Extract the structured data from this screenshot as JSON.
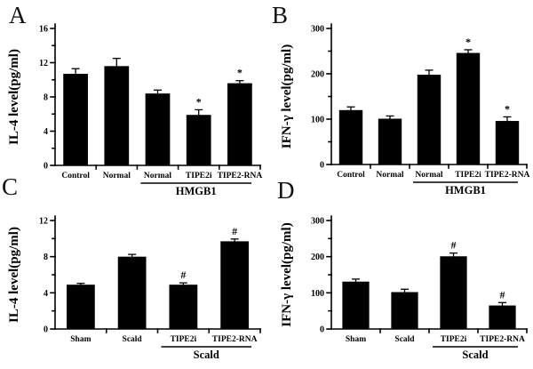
{
  "colors": {
    "bar": "#000000",
    "axis": "#000000",
    "background": "#ffffff"
  },
  "chart_data": [
    {
      "panel": "A",
      "type": "bar",
      "title": "",
      "xlabel": "",
      "ylabel": "IL-4 level(pg/ml)",
      "ylim": [
        0,
        16
      ],
      "yticks": [
        0,
        4,
        8,
        12,
        16
      ],
      "minor_tick_step": 2,
      "grid": false,
      "legend": "none",
      "categories": [
        "Control",
        "Normal",
        "Normal",
        "TIPE2i",
        "TIPE2-RNA"
      ],
      "values": [
        10.7,
        11.6,
        8.4,
        5.9,
        9.6
      ],
      "errors": [
        0.6,
        0.9,
        0.4,
        0.6,
        0.3
      ],
      "sig_markers": [
        "",
        "",
        "",
        "*",
        "*"
      ],
      "group": {
        "from": 2,
        "to": 4,
        "label": "HMGB1"
      }
    },
    {
      "panel": "B",
      "type": "bar",
      "title": "",
      "xlabel": "",
      "ylabel": "IFN-γ level(pg/ml)",
      "ylim": [
        0,
        300
      ],
      "yticks": [
        0,
        100,
        200,
        300
      ],
      "minor_tick_step": 50,
      "grid": false,
      "legend": "none",
      "categories": [
        "Control",
        "Normal",
        "Normal",
        "TIPE2i",
        "TIPE2-RNA"
      ],
      "values": [
        120,
        101,
        198,
        246,
        96
      ],
      "errors": [
        7,
        6,
        10,
        7,
        9
      ],
      "sig_markers": [
        "",
        "",
        "",
        "*",
        "*"
      ],
      "group": {
        "from": 2,
        "to": 4,
        "label": "HMGB1"
      }
    },
    {
      "panel": "C",
      "type": "bar",
      "title": "",
      "xlabel": "",
      "ylabel": "IL-4 level(pg/ml)",
      "ylim": [
        0,
        12
      ],
      "yticks": [
        0,
        4,
        8,
        12
      ],
      "minor_tick_step": 2,
      "grid": false,
      "legend": "none",
      "categories": [
        "Sham",
        "Scald",
        "TIPE2i",
        "TIPE2-RNA"
      ],
      "values": [
        4.9,
        8.0,
        4.9,
        9.7
      ],
      "errors": [
        0.15,
        0.25,
        0.2,
        0.25
      ],
      "sig_markers": [
        "",
        "",
        "#",
        "#"
      ],
      "group": {
        "from": 2,
        "to": 3,
        "label": "Scald"
      }
    },
    {
      "panel": "D",
      "type": "bar",
      "title": "",
      "xlabel": "",
      "ylabel": "IFN-γ level(pg/ml)",
      "ylim": [
        0,
        300
      ],
      "yticks": [
        0,
        100,
        200,
        300
      ],
      "minor_tick_step": 50,
      "grid": false,
      "legend": "none",
      "categories": [
        "Sham",
        "Scald",
        "TIPE2i",
        "TIPE2-RNA"
      ],
      "values": [
        131,
        102,
        201,
        65
      ],
      "errors": [
        7,
        8,
        9,
        8
      ],
      "sig_markers": [
        "",
        "",
        "#",
        "#"
      ],
      "group": {
        "from": 2,
        "to": 3,
        "label": "Scald"
      }
    }
  ]
}
